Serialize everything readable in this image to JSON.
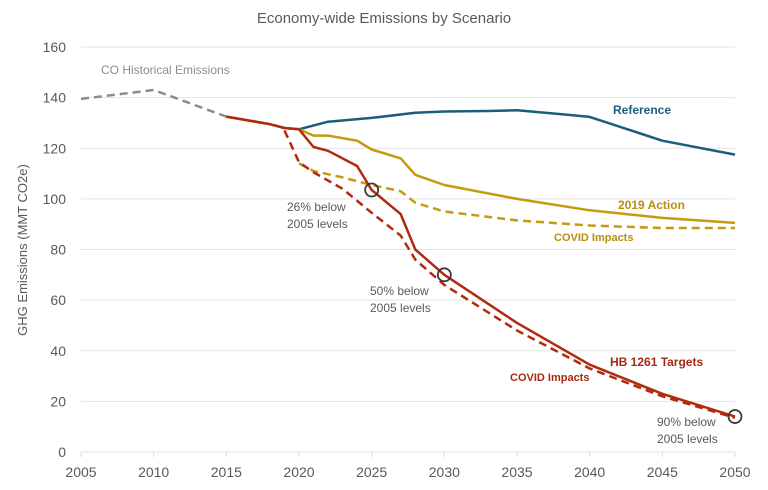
{
  "chart_data": {
    "type": "line",
    "title": "Economy-wide Emissions by Scenario",
    "xlabel": "",
    "ylabel": "GHG Emissions (MMT CO2e)",
    "xlim": [
      2005,
      2050
    ],
    "ylim": [
      0,
      160
    ],
    "x_ticks": [
      2005,
      2010,
      2015,
      2020,
      2025,
      2030,
      2035,
      2040,
      2045,
      2050
    ],
    "y_ticks": [
      0,
      20,
      40,
      60,
      80,
      100,
      120,
      140,
      160
    ],
    "grid": true,
    "legend": "inline labels",
    "series": [
      {
        "name": "CO Historical Emissions",
        "color": "#8c8c8c",
        "dash": true,
        "x": [
          2005,
          2010,
          2015
        ],
        "y": [
          139.5,
          143,
          132.5
        ]
      },
      {
        "name": "Reference",
        "color": "#1b5e7a",
        "dash": false,
        "x": [
          2015,
          2018,
          2019,
          2020,
          2022,
          2025,
          2028,
          2030,
          2033,
          2035,
          2038,
          2040,
          2045,
          2050
        ],
        "y": [
          132.5,
          129.5,
          128,
          127.5,
          130.5,
          132,
          134,
          134.5,
          134.7,
          135,
          133.5,
          132.4,
          123,
          117.5
        ]
      },
      {
        "name": "2019 Action",
        "color": "#c49a0e",
        "dash": false,
        "x": [
          2015,
          2018,
          2019,
          2020,
          2021,
          2022,
          2024,
          2025,
          2027,
          2028,
          2030,
          2035,
          2040,
          2045,
          2050
        ],
        "y": [
          132.5,
          129.5,
          128,
          127.5,
          125,
          125,
          123,
          119.5,
          116,
          109.5,
          105.5,
          100,
          95.5,
          92.5,
          90.5
        ]
      },
      {
        "name": "COVID Impacts (2019 Action)",
        "color": "#c49a0e",
        "dash": true,
        "x": [
          2020,
          2021,
          2023,
          2025,
          2027,
          2028,
          2030,
          2035,
          2040,
          2045,
          2050
        ],
        "y": [
          114,
          111,
          108.5,
          105.5,
          103,
          98.5,
          95,
          91.5,
          89.5,
          88.5,
          88.5
        ]
      },
      {
        "name": "HB 1261 Targets",
        "color": "#b22a0e",
        "dash": false,
        "x": [
          2015,
          2018,
          2019,
          2020,
          2021,
          2022,
          2024,
          2025,
          2027,
          2028,
          2030,
          2035,
          2040,
          2045,
          2050
        ],
        "y": [
          132.5,
          129.5,
          128,
          127.5,
          120.5,
          119,
          113,
          103.5,
          94,
          80,
          70,
          51,
          34.5,
          23,
          14
        ]
      },
      {
        "name": "COVID Impacts (HB 1261)",
        "color": "#b22a0e",
        "dash": true,
        "x": [
          2019,
          2020,
          2021,
          2023,
          2025,
          2027,
          2028,
          2030,
          2035,
          2040,
          2045,
          2050
        ],
        "y": [
          127,
          114.5,
          110.5,
          104,
          94.5,
          85.5,
          76,
          66,
          48,
          33,
          22,
          13.5
        ]
      }
    ],
    "series_labels": [
      {
        "text": "CO Historical Emissions",
        "series": 0,
        "color": "#8c8c8c"
      },
      {
        "text": "Reference",
        "series": 1,
        "color": "#1b5e7a"
      },
      {
        "text": "2019 Action",
        "series": 2,
        "color": "#b8900c"
      },
      {
        "text": "COVID Impacts",
        "series": 3,
        "color": "#b8900c"
      },
      {
        "text": "HB 1261 Targets",
        "series": 4,
        "color": "#a82a10"
      },
      {
        "text": "COVID Impacts",
        "series": 5,
        "color": "#a82a10"
      }
    ],
    "markers": [
      {
        "x": 2025,
        "y": 103.5,
        "label": [
          "26% below",
          "2005 levels"
        ]
      },
      {
        "x": 2030,
        "y": 70,
        "label": [
          "50% below",
          "2005 levels"
        ]
      },
      {
        "x": 2050,
        "y": 14,
        "label": [
          "90% below",
          "2005 levels"
        ]
      }
    ]
  }
}
